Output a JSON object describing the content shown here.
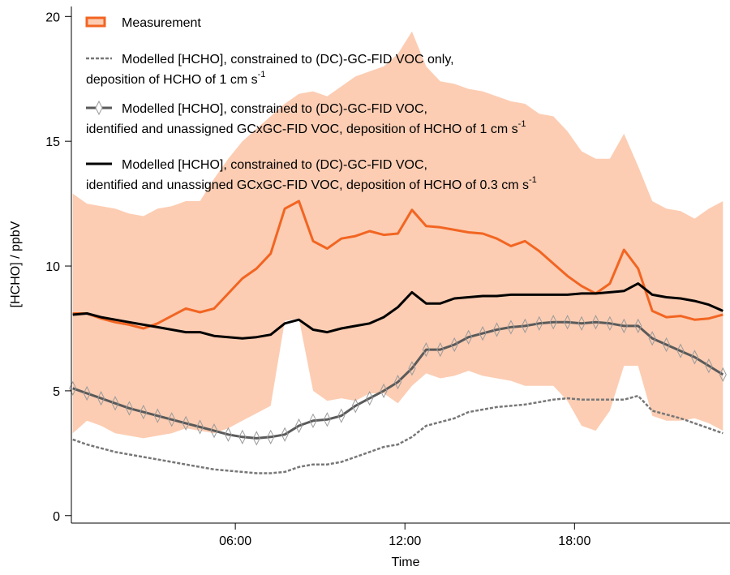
{
  "chart_data": {
    "type": "line",
    "xlabel": "Time",
    "ylabel": "[HCHO] / ppbV",
    "xlim": [
      0.2,
      23.5
    ],
    "ylim": [
      -0.3,
      20.4
    ],
    "xticks": [
      {
        "value": 6,
        "label": "06:00"
      },
      {
        "value": 12,
        "label": "12:00"
      },
      {
        "value": 18,
        "label": "18:00"
      }
    ],
    "yticks": [
      0,
      5,
      10,
      15,
      20
    ],
    "x": [
      0.25,
      0.75,
      1.25,
      1.75,
      2.25,
      2.75,
      3.25,
      3.75,
      4.25,
      4.75,
      5.25,
      5.75,
      6.25,
      6.75,
      7.25,
      7.75,
      8.25,
      8.75,
      9.25,
      9.75,
      10.25,
      10.75,
      11.25,
      11.75,
      12.25,
      12.75,
      13.25,
      13.75,
      14.25,
      14.75,
      15.25,
      15.75,
      16.25,
      16.75,
      17.25,
      17.75,
      18.25,
      18.75,
      19.25,
      19.75,
      20.25,
      20.75,
      21.25,
      21.75,
      22.25,
      22.75,
      23.25
    ],
    "series": [
      {
        "name": "Measurement",
        "color": "#f26522",
        "band_color": "#fccdb3",
        "line_style": "solid",
        "values": [
          8.1,
          8.1,
          7.9,
          7.75,
          7.65,
          7.5,
          7.7,
          8.0,
          8.3,
          8.15,
          8.3,
          8.9,
          9.5,
          9.9,
          10.5,
          12.3,
          12.6,
          11.0,
          10.7,
          11.1,
          11.2,
          11.4,
          11.25,
          11.3,
          12.25,
          11.6,
          11.55,
          11.45,
          11.35,
          11.3,
          11.1,
          10.8,
          11.0,
          10.6,
          10.1,
          9.6,
          9.2,
          8.9,
          9.3,
          10.65,
          9.9,
          8.2,
          7.95,
          8.0,
          7.85,
          7.9,
          8.05
        ],
        "band_upper": [
          12.9,
          12.5,
          12.4,
          12.3,
          12.1,
          12.0,
          12.3,
          12.4,
          12.6,
          12.6,
          13.5,
          14.3,
          15.0,
          15.5,
          16.0,
          16.5,
          16.9,
          17.0,
          16.8,
          17.2,
          17.6,
          17.8,
          18.0,
          18.5,
          19.4,
          18.0,
          17.4,
          17.3,
          17.1,
          17.0,
          16.8,
          16.6,
          16.5,
          16.1,
          16.0,
          15.4,
          14.6,
          14.3,
          14.3,
          15.3,
          14.0,
          12.6,
          12.3,
          12.2,
          11.9,
          12.3,
          12.6
        ],
        "band_lower": [
          3.3,
          3.8,
          3.6,
          3.3,
          3.2,
          3.1,
          3.2,
          3.3,
          3.5,
          3.4,
          3.3,
          3.5,
          3.8,
          4.1,
          4.4,
          7.8,
          7.9,
          5.0,
          4.6,
          4.7,
          4.6,
          4.9,
          4.9,
          4.5,
          5.2,
          5.7,
          5.5,
          5.6,
          5.8,
          5.6,
          5.5,
          5.4,
          5.2,
          5.2,
          5.2,
          4.6,
          3.6,
          3.4,
          4.2,
          6.0,
          6.0,
          4.0,
          3.8,
          3.8,
          3.9,
          3.7,
          3.4
        ]
      },
      {
        "name": "Modelled [HCHO], constrained to (DC)-GC-FID VOC only,",
        "name_cont": "deposition of HCHO of 1 cm s",
        "name_sup": "-1",
        "color": "#777777",
        "line_style": "dashed",
        "values": [
          3.05,
          2.85,
          2.7,
          2.55,
          2.45,
          2.35,
          2.25,
          2.15,
          2.05,
          1.95,
          1.85,
          1.8,
          1.75,
          1.7,
          1.7,
          1.75,
          1.95,
          2.05,
          2.05,
          2.15,
          2.35,
          2.55,
          2.75,
          2.85,
          3.15,
          3.6,
          3.75,
          3.9,
          4.15,
          4.25,
          4.35,
          4.4,
          4.45,
          4.55,
          4.65,
          4.7,
          4.65,
          4.65,
          4.65,
          4.65,
          4.8,
          4.2,
          4.05,
          3.9,
          3.7,
          3.5,
          3.3
        ]
      },
      {
        "name": "Modelled [HCHO], constrained to (DC)-GC-FID VOC,",
        "name_cont": "identified and unassigned GCxGC-FID VOC, deposition of HCHO of 1 cm s",
        "name_sup": "-1",
        "color": "#5a5a5a",
        "line_style": "solid",
        "marker": "diamond",
        "values": [
          5.1,
          4.9,
          4.7,
          4.5,
          4.3,
          4.15,
          4.0,
          3.85,
          3.7,
          3.55,
          3.4,
          3.25,
          3.15,
          3.1,
          3.15,
          3.25,
          3.6,
          3.8,
          3.85,
          4.0,
          4.4,
          4.7,
          5.0,
          5.35,
          5.9,
          6.65,
          6.65,
          6.85,
          7.15,
          7.3,
          7.45,
          7.55,
          7.6,
          7.7,
          7.75,
          7.75,
          7.7,
          7.75,
          7.7,
          7.6,
          7.6,
          7.1,
          6.85,
          6.6,
          6.35,
          6.0,
          5.65
        ]
      },
      {
        "name": "Modelled [HCHO], constrained to (DC)-GC-FID VOC,",
        "name_cont": "identified and unassigned GCxGC-FID VOC, deposition of HCHO of 0.3 cm s",
        "name_sup": "-1",
        "color": "#000000",
        "line_style": "solid",
        "values": [
          8.05,
          8.1,
          7.95,
          7.85,
          7.75,
          7.65,
          7.55,
          7.45,
          7.35,
          7.35,
          7.2,
          7.15,
          7.1,
          7.15,
          7.25,
          7.7,
          7.85,
          7.45,
          7.35,
          7.5,
          7.6,
          7.7,
          7.95,
          8.35,
          8.95,
          8.5,
          8.5,
          8.7,
          8.75,
          8.8,
          8.8,
          8.85,
          8.85,
          8.85,
          8.85,
          8.85,
          8.9,
          8.9,
          8.95,
          9.0,
          9.3,
          8.85,
          8.75,
          8.7,
          8.6,
          8.45,
          8.2
        ]
      }
    ]
  }
}
